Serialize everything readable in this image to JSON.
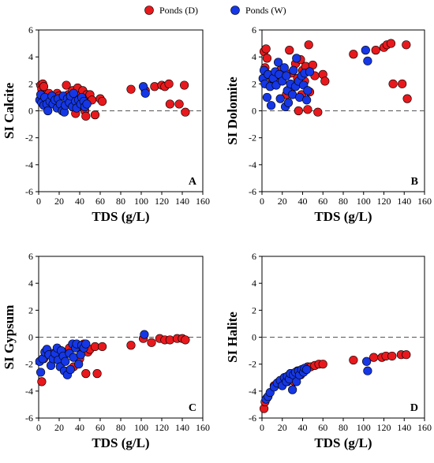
{
  "legend": {
    "items": [
      {
        "label": "Ponds (D)",
        "color": "#e8191d"
      },
      {
        "label": "Ponds (W)",
        "color": "#1537e6"
      }
    ]
  },
  "chart_data": [
    {
      "type": "scatter",
      "panel": "A",
      "xlabel": "TDS (g/L)",
      "ylabel": "SI Calcite",
      "xlim": [
        0,
        160
      ],
      "ylim": [
        -6,
        6
      ],
      "xticks": [
        0,
        20,
        40,
        60,
        80,
        100,
        120,
        140,
        160
      ],
      "yticks": [
        -6,
        -4,
        -2,
        0,
        2,
        4,
        6
      ],
      "reference_line_y": 0,
      "series": [
        {
          "name": "Ponds (D)",
          "color": "#e8191d",
          "points": [
            [
              2,
              1.9
            ],
            [
              3,
              1.6
            ],
            [
              4,
              2.0
            ],
            [
              5,
              1.8
            ],
            [
              7,
              1.2
            ],
            [
              9,
              0.9
            ],
            [
              10,
              1.3
            ],
            [
              12,
              0.6
            ],
            [
              14,
              1.0
            ],
            [
              18,
              1.3
            ],
            [
              20,
              1.1
            ],
            [
              24,
              0.3
            ],
            [
              27,
              1.9
            ],
            [
              29,
              1.2
            ],
            [
              31,
              0.7
            ],
            [
              33,
              1.5
            ],
            [
              35,
              1.0
            ],
            [
              36,
              -0.2
            ],
            [
              38,
              1.7
            ],
            [
              39,
              0.4
            ],
            [
              40,
              1.1
            ],
            [
              42,
              0.8
            ],
            [
              43,
              1.5
            ],
            [
              45,
              0.0
            ],
            [
              46,
              -0.4
            ],
            [
              47,
              1.2
            ],
            [
              50,
              1.2
            ],
            [
              52,
              0.8
            ],
            [
              55,
              -0.3
            ],
            [
              60,
              0.9
            ],
            [
              62,
              0.7
            ],
            [
              90,
              1.6
            ],
            [
              104,
              1.5
            ],
            [
              113,
              1.8
            ],
            [
              120,
              1.9
            ],
            [
              123,
              1.8
            ],
            [
              127,
              2.0
            ],
            [
              128,
              0.5
            ],
            [
              137,
              0.5
            ],
            [
              142,
              1.9
            ],
            [
              143,
              -0.1
            ]
          ]
        },
        {
          "name": "Ponds (W)",
          "color": "#1537e6",
          "points": [
            [
              1,
              0.8
            ],
            [
              2,
              1.2
            ],
            [
              3,
              0.6
            ],
            [
              5,
              0.4
            ],
            [
              6,
              1.0
            ],
            [
              8,
              0.5
            ],
            [
              9,
              0.0
            ],
            [
              11,
              0.7
            ],
            [
              13,
              1.1
            ],
            [
              14,
              0.5
            ],
            [
              16,
              0.8
            ],
            [
              18,
              0.2
            ],
            [
              19,
              0.9
            ],
            [
              21,
              0.5
            ],
            [
              23,
              0.0
            ],
            [
              24,
              1.1
            ],
            [
              25,
              -0.1
            ],
            [
              26,
              0.4
            ],
            [
              28,
              0.9
            ],
            [
              30,
              0.6
            ],
            [
              31,
              1.1
            ],
            [
              33,
              0.3
            ],
            [
              34,
              1.3
            ],
            [
              36,
              0.7
            ],
            [
              37,
              0.2
            ],
            [
              39,
              0.8
            ],
            [
              41,
              0.5
            ],
            [
              42,
              1.0
            ],
            [
              44,
              0.7
            ],
            [
              45,
              0.3
            ],
            [
              47,
              0.5
            ],
            [
              102,
              1.8
            ],
            [
              104,
              1.3
            ]
          ]
        }
      ]
    },
    {
      "type": "scatter",
      "panel": "B",
      "xlabel": "TDS (g/L)",
      "ylabel": "SI Dolomite",
      "xlim": [
        0,
        160
      ],
      "ylim": [
        -6,
        6
      ],
      "xticks": [
        0,
        20,
        40,
        60,
        80,
        100,
        120,
        140,
        160
      ],
      "yticks": [
        -6,
        -4,
        -2,
        0,
        2,
        4,
        6
      ],
      "reference_line_y": 0,
      "series": [
        {
          "name": "Ponds (D)",
          "color": "#e8191d",
          "points": [
            [
              2,
              4.4
            ],
            [
              3,
              3.2
            ],
            [
              4,
              4.6
            ],
            [
              5,
              3.9
            ],
            [
              8,
              2.6
            ],
            [
              10,
              2.4
            ],
            [
              14,
              2.1
            ],
            [
              18,
              3.0
            ],
            [
              20,
              2.4
            ],
            [
              24,
              1.2
            ],
            [
              27,
              4.5
            ],
            [
              29,
              2.8
            ],
            [
              31,
              1.8
            ],
            [
              33,
              3.5
            ],
            [
              35,
              2.4
            ],
            [
              36,
              0.0
            ],
            [
              38,
              3.8
            ],
            [
              39,
              1.2
            ],
            [
              40,
              3.0
            ],
            [
              42,
              2.2
            ],
            [
              43,
              3.3
            ],
            [
              45,
              0.1
            ],
            [
              46,
              4.9
            ],
            [
              47,
              1.4
            ],
            [
              50,
              3.4
            ],
            [
              52,
              2.6
            ],
            [
              55,
              -0.1
            ],
            [
              60,
              2.7
            ],
            [
              62,
              2.2
            ],
            [
              90,
              4.2
            ],
            [
              112,
              4.5
            ],
            [
              120,
              4.7
            ],
            [
              123,
              4.9
            ],
            [
              127,
              5.0
            ],
            [
              129,
              2.0
            ],
            [
              138,
              2.0
            ],
            [
              142,
              4.9
            ],
            [
              143,
              0.9
            ]
          ]
        },
        {
          "name": "Ponds (W)",
          "color": "#1537e6",
          "points": [
            [
              1,
              2.4
            ],
            [
              2,
              3.0
            ],
            [
              3,
              2.0
            ],
            [
              5,
              1.0
            ],
            [
              6,
              2.7
            ],
            [
              8,
              1.8
            ],
            [
              9,
              0.4
            ],
            [
              11,
              2.4
            ],
            [
              13,
              2.9
            ],
            [
              14,
              1.9
            ],
            [
              16,
              3.6
            ],
            [
              17,
              2.7
            ],
            [
              18,
              0.9
            ],
            [
              20,
              2.2
            ],
            [
              22,
              3.2
            ],
            [
              23,
              0.3
            ],
            [
              24,
              2.6
            ],
            [
              25,
              1.5
            ],
            [
              26,
              0.6
            ],
            [
              28,
              2.0
            ],
            [
              30,
              1.2
            ],
            [
              31,
              3.0
            ],
            [
              33,
              1.8
            ],
            [
              34,
              3.9
            ],
            [
              36,
              2.2
            ],
            [
              37,
              1.0
            ],
            [
              39,
              2.6
            ],
            [
              41,
              1.9
            ],
            [
              42,
              2.8
            ],
            [
              44,
              0.8
            ],
            [
              45,
              1.5
            ],
            [
              47,
              2.9
            ],
            [
              102,
              4.5
            ],
            [
              104,
              3.7
            ]
          ]
        }
      ]
    },
    {
      "type": "scatter",
      "panel": "C",
      "xlabel": "TDS (g/L)",
      "ylabel": "SI Gypsum",
      "xlim": [
        0,
        160
      ],
      "ylim": [
        -6,
        6
      ],
      "xticks": [
        0,
        20,
        40,
        60,
        80,
        100,
        120,
        140,
        160
      ],
      "yticks": [
        -6,
        -4,
        -2,
        0,
        2,
        4,
        6
      ],
      "reference_line_y": 0,
      "series": [
        {
          "name": "Ponds (D)",
          "color": "#e8191d",
          "points": [
            [
              3,
              -3.3
            ],
            [
              5,
              -1.6
            ],
            [
              8,
              -1.3
            ],
            [
              12,
              -1.2
            ],
            [
              17,
              -1.1
            ],
            [
              22,
              -1.1
            ],
            [
              27,
              -1.1
            ],
            [
              30,
              -0.8
            ],
            [
              34,
              -2.2
            ],
            [
              36,
              -0.7
            ],
            [
              38,
              -0.6
            ],
            [
              40,
              -1.6
            ],
            [
              42,
              -1.1
            ],
            [
              44,
              -0.5
            ],
            [
              46,
              -2.7
            ],
            [
              48,
              -1.1
            ],
            [
              50,
              -0.9
            ],
            [
              55,
              -0.7
            ],
            [
              57,
              -2.7
            ],
            [
              62,
              -0.7
            ],
            [
              90,
              -0.6
            ],
            [
              102,
              -0.1
            ],
            [
              110,
              -0.4
            ],
            [
              118,
              -0.1
            ],
            [
              123,
              -0.2
            ],
            [
              128,
              -0.2
            ],
            [
              135,
              -0.1
            ],
            [
              140,
              -0.1
            ],
            [
              143,
              -0.2
            ]
          ]
        },
        {
          "name": "Ponds (W)",
          "color": "#1537e6",
          "points": [
            [
              1,
              -1.8
            ],
            [
              2,
              -2.6
            ],
            [
              4,
              -1.6
            ],
            [
              6,
              -1.1
            ],
            [
              8,
              -0.9
            ],
            [
              10,
              -1.3
            ],
            [
              12,
              -2.1
            ],
            [
              14,
              -1.6
            ],
            [
              16,
              -1.2
            ],
            [
              18,
              -0.8
            ],
            [
              19,
              -1.7
            ],
            [
              21,
              -2.2
            ],
            [
              22,
              -1.0
            ],
            [
              24,
              -1.4
            ],
            [
              25,
              -2.5
            ],
            [
              26,
              -1.8
            ],
            [
              28,
              -2.8
            ],
            [
              30,
              -1.2
            ],
            [
              31,
              -2.4
            ],
            [
              33,
              -0.5
            ],
            [
              34,
              -1.5
            ],
            [
              36,
              -0.8
            ],
            [
              37,
              -0.5
            ],
            [
              39,
              -2.0
            ],
            [
              41,
              -1.3
            ],
            [
              42,
              -0.6
            ],
            [
              44,
              -0.8
            ],
            [
              46,
              -0.5
            ],
            [
              103,
              0.2
            ]
          ]
        }
      ]
    },
    {
      "type": "scatter",
      "panel": "D",
      "xlabel": "TDS (g/L)",
      "ylabel": "SI Halite",
      "xlim": [
        0,
        160
      ],
      "ylim": [
        -6,
        6
      ],
      "xticks": [
        0,
        20,
        40,
        60,
        80,
        100,
        120,
        140,
        160
      ],
      "yticks": [
        -6,
        -4,
        -2,
        0,
        2,
        4,
        6
      ],
      "reference_line_y": 0,
      "series": [
        {
          "name": "Ponds (D)",
          "color": "#e8191d",
          "points": [
            [
              2,
              -5.3
            ],
            [
              3,
              -4.8
            ],
            [
              5,
              -4.5
            ],
            [
              12,
              -3.6
            ],
            [
              17,
              -3.3
            ],
            [
              22,
              -3.0
            ],
            [
              25,
              -3.3
            ],
            [
              28,
              -2.7
            ],
            [
              32,
              -3.3
            ],
            [
              35,
              -2.5
            ],
            [
              38,
              -2.8
            ],
            [
              40,
              -2.4
            ],
            [
              43,
              -2.3
            ],
            [
              45,
              -2.2
            ],
            [
              48,
              -2.2
            ],
            [
              52,
              -2.1
            ],
            [
              56,
              -2.0
            ],
            [
              60,
              -2.0
            ],
            [
              90,
              -1.7
            ],
            [
              110,
              -1.5
            ],
            [
              118,
              -1.5
            ],
            [
              122,
              -1.4
            ],
            [
              128,
              -1.4
            ],
            [
              137,
              -1.3
            ],
            [
              142,
              -1.3
            ]
          ]
        },
        {
          "name": "Ponds (W)",
          "color": "#1537e6",
          "points": [
            [
              4,
              -4.6
            ],
            [
              6,
              -4.4
            ],
            [
              8,
              -4.1
            ],
            [
              12,
              -3.7
            ],
            [
              15,
              -3.4
            ],
            [
              18,
              -3.2
            ],
            [
              20,
              -3.6
            ],
            [
              22,
              -3.0
            ],
            [
              24,
              -3.3
            ],
            [
              25,
              -2.9
            ],
            [
              27,
              -3.1
            ],
            [
              28,
              -2.7
            ],
            [
              30,
              -3.9
            ],
            [
              31,
              -2.8
            ],
            [
              33,
              -2.6
            ],
            [
              34,
              -3.3
            ],
            [
              36,
              -2.5
            ],
            [
              37,
              -2.8
            ],
            [
              39,
              -2.4
            ],
            [
              41,
              -2.6
            ],
            [
              42,
              -2.3
            ],
            [
              44,
              -2.4
            ],
            [
              103,
              -1.8
            ],
            [
              104,
              -2.5
            ]
          ]
        }
      ]
    }
  ]
}
